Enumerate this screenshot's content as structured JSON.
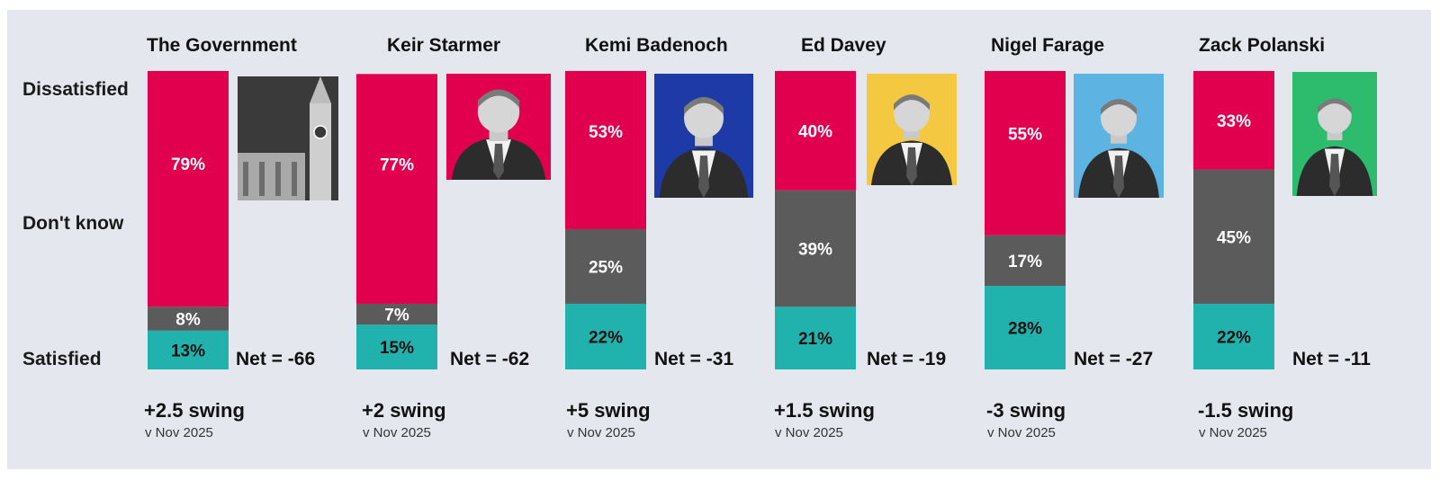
{
  "colors": {
    "dissatisfied": "#e0004d",
    "dont_know": "#5b5b5b",
    "satisfied": "#22b2ad",
    "background": "#e4e8ee",
    "photo_backgrounds": [
      "#3a3a3a",
      "#e0004d",
      "#1d3aa6",
      "#f5c842",
      "#5db4e2",
      "#2dbb6e"
    ]
  },
  "chart_data": {
    "type": "bar",
    "stacked": true,
    "row_labels": [
      "Dissatisfied",
      "Don't know",
      "Satisfied"
    ],
    "categories": [
      "The Government",
      "Keir Starmer",
      "Kemi Badenoch",
      "Ed Davey",
      "Nigel Farage",
      "Zack Polanski"
    ],
    "series": [
      {
        "name": "Satisfied",
        "values": [
          13,
          15,
          22,
          21,
          28,
          22
        ],
        "labels": [
          "13%",
          "15%",
          "22%",
          "21%",
          "28%",
          "22%"
        ]
      },
      {
        "name": "Don't know",
        "values": [
          8,
          7,
          25,
          39,
          17,
          45
        ],
        "labels": [
          "8%",
          "7%",
          "25%",
          "39%",
          "17%",
          "45%"
        ]
      },
      {
        "name": "Dissatisfied",
        "values": [
          79,
          77,
          53,
          40,
          55,
          33
        ],
        "labels": [
          "79%",
          "77%",
          "53%",
          "40%",
          "55%",
          "33%"
        ]
      }
    ],
    "net_labels": [
      "Net = -66",
      "Net = -62",
      "Net = -31",
      "Net = -19",
      "Net = -27",
      "Net = -11"
    ],
    "swing_labels": [
      "+2.5 swing",
      "+2 swing",
      "+5 swing",
      "+1.5 swing",
      "-3 swing",
      "-1.5 swing"
    ],
    "swing_note": "v Nov 2025",
    "ylim": [
      0,
      100
    ]
  }
}
